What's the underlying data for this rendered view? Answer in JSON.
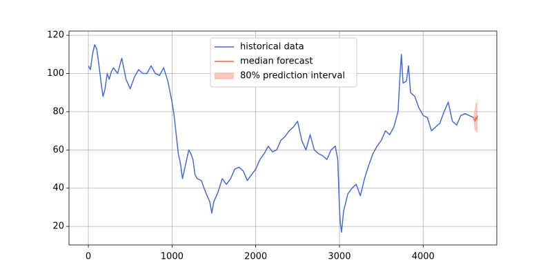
{
  "chart_data": {
    "type": "line",
    "xlim": [
      -231,
      4880
    ],
    "ylim": [
      10.3,
      122.2
    ],
    "xticks": [
      0,
      1000,
      2000,
      3000,
      4000
    ],
    "yticks": [
      20,
      40,
      60,
      80,
      100,
      120
    ],
    "grid": true,
    "legend": "upper center",
    "series": [
      {
        "name": "historical data",
        "color": "#4169e1",
        "x": [
          0,
          25,
          50,
          75,
          100,
          125,
          150,
          175,
          200,
          225,
          250,
          275,
          300,
          350,
          400,
          450,
          500,
          550,
          600,
          650,
          700,
          750,
          800,
          850,
          900,
          950,
          1000,
          1025,
          1050,
          1075,
          1100,
          1125,
          1150,
          1175,
          1200,
          1225,
          1250,
          1275,
          1300,
          1350,
          1400,
          1450,
          1475,
          1500,
          1550,
          1600,
          1650,
          1700,
          1750,
          1800,
          1850,
          1900,
          1950,
          2000,
          2050,
          2100,
          2150,
          2200,
          2250,
          2300,
          2350,
          2400,
          2450,
          2500,
          2550,
          2600,
          2650,
          2700,
          2750,
          2800,
          2850,
          2900,
          2950,
          2980,
          3000,
          3010,
          3025,
          3050,
          3100,
          3150,
          3200,
          3250,
          3300,
          3350,
          3400,
          3450,
          3500,
          3550,
          3600,
          3650,
          3700,
          3725,
          3740,
          3760,
          3800,
          3825,
          3850,
          3900,
          3950,
          4000,
          4050,
          4100,
          4150,
          4200,
          4250,
          4300,
          4350,
          4400,
          4450,
          4500,
          4550,
          4600
        ],
        "values": [
          104,
          102,
          110,
          115,
          113,
          105,
          96,
          88,
          92,
          100,
          97,
          101,
          103,
          100,
          108,
          97,
          92,
          98,
          102,
          100,
          100,
          104,
          100,
          99,
          103,
          96,
          85,
          78,
          68,
          58,
          53,
          45,
          50,
          55,
          60,
          58,
          55,
          47,
          45,
          44,
          38,
          33,
          27,
          33,
          38,
          45,
          42,
          45,
          50,
          51,
          49,
          44,
          47,
          50,
          55,
          58,
          62,
          59,
          60,
          65,
          67,
          70,
          72,
          75,
          65,
          60,
          68,
          60,
          58,
          57,
          55,
          60,
          62,
          55,
          30,
          22,
          17,
          28,
          37,
          40,
          42,
          36,
          45,
          52,
          58,
          62,
          65,
          70,
          68,
          72,
          80,
          100,
          110,
          95,
          96,
          104,
          90,
          88,
          82,
          78,
          77,
          70,
          72,
          74,
          80,
          85,
          75,
          73,
          78,
          79,
          78,
          77
        ]
      },
      {
        "name": "median forecast",
        "color": "#ff6347",
        "x": [
          4600,
          4610,
          4620,
          4630,
          4640,
          4650
        ],
        "values": [
          77,
          76,
          75,
          77,
          76,
          78
        ]
      }
    ],
    "band": {
      "name": "80% prediction interval",
      "color": "#f4a090",
      "x": [
        4600,
        4610,
        4620,
        4630,
        4640,
        4650
      ],
      "lower": [
        77,
        72,
        70,
        70,
        69,
        69
      ],
      "upper": [
        77,
        80,
        82,
        85,
        84,
        88
      ]
    }
  }
}
